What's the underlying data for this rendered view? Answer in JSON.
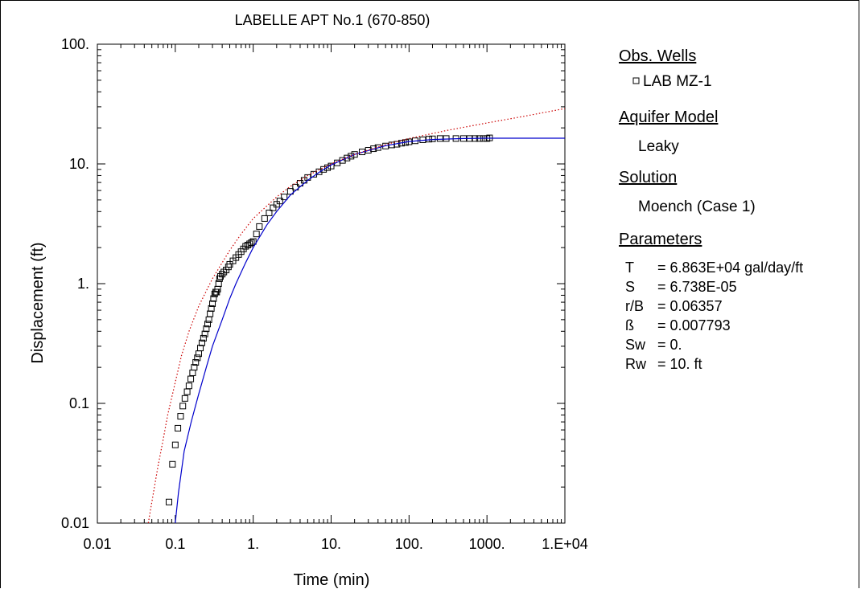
{
  "chart_data": {
    "type": "scatter",
    "title": "LABELLE APT No.1  (670-850)",
    "xlabel": "Time (min)",
    "ylabel": "Displacement (ft)",
    "xscale": "log",
    "yscale": "log",
    "xlim": [
      0.01,
      10000
    ],
    "ylim": [
      0.01,
      100
    ],
    "xticks": [
      {
        "value": 0.01,
        "label": "0.01"
      },
      {
        "value": 0.1,
        "label": "0.1"
      },
      {
        "value": 1,
        "label": "1."
      },
      {
        "value": 10,
        "label": "10."
      },
      {
        "value": 100,
        "label": "100."
      },
      {
        "value": 1000,
        "label": "1000."
      },
      {
        "value": 10000,
        "label": "1.E+04"
      }
    ],
    "yticks": [
      {
        "value": 0.01,
        "label": "0.01"
      },
      {
        "value": 0.1,
        "label": "0.1"
      },
      {
        "value": 1,
        "label": "1."
      },
      {
        "value": 10,
        "label": "10."
      },
      {
        "value": 100,
        "label": "100."
      }
    ],
    "grid": false,
    "series": [
      {
        "name": "LAB MZ-1",
        "kind": "scatter",
        "marker": "open-square",
        "color": "#000000",
        "x": [
          0.083,
          0.092,
          0.1,
          0.108,
          0.117,
          0.125,
          0.133,
          0.142,
          0.15,
          0.158,
          0.167,
          0.175,
          0.183,
          0.192,
          0.2,
          0.21,
          0.22,
          0.23,
          0.24,
          0.25,
          0.26,
          0.27,
          0.28,
          0.29,
          0.3,
          0.31,
          0.32,
          0.33,
          0.34,
          0.35,
          0.36,
          0.37,
          0.38,
          0.4,
          0.42,
          0.45,
          0.48,
          0.5,
          0.55,
          0.6,
          0.65,
          0.7,
          0.75,
          0.8,
          0.85,
          0.9,
          0.95,
          1.0,
          1.1,
          1.2,
          1.4,
          1.6,
          1.8,
          2.0,
          2.2,
          2.5,
          3.0,
          3.5,
          4.0,
          4.5,
          5.0,
          6.0,
          7.0,
          8.0,
          9.0,
          10,
          12,
          14,
          16,
          18,
          20,
          25,
          30,
          35,
          40,
          50,
          60,
          70,
          80,
          90,
          100,
          120,
          150,
          180,
          200,
          250,
          300,
          400,
          500,
          600,
          700,
          800,
          900,
          1000,
          1080
        ],
        "y": [
          0.015,
          0.031,
          0.045,
          0.062,
          0.078,
          0.095,
          0.11,
          0.125,
          0.14,
          0.16,
          0.18,
          0.2,
          0.22,
          0.24,
          0.26,
          0.29,
          0.32,
          0.35,
          0.38,
          0.42,
          0.46,
          0.5,
          0.56,
          0.62,
          0.68,
          0.75,
          0.82,
          0.85,
          0.85,
          0.9,
          1.0,
          1.1,
          1.15,
          1.2,
          1.25,
          1.3,
          1.38,
          1.45,
          1.55,
          1.65,
          1.75,
          1.85,
          1.95,
          2.05,
          2.1,
          2.15,
          2.2,
          2.25,
          2.6,
          3.0,
          3.5,
          3.9,
          4.3,
          4.6,
          4.9,
          5.3,
          5.9,
          6.4,
          6.9,
          7.3,
          7.7,
          8.2,
          8.6,
          9.0,
          9.3,
          9.6,
          10.2,
          10.7,
          11.2,
          11.6,
          12.0,
          12.6,
          13.0,
          13.4,
          13.7,
          14.1,
          14.4,
          14.6,
          14.9,
          15.1,
          15.3,
          15.6,
          15.9,
          16.1,
          16.2,
          16.3,
          16.3,
          16.3,
          16.3,
          16.3,
          16.3,
          16.3,
          16.3,
          16.3,
          16.5
        ]
      },
      {
        "name": "",
        "kind": "line",
        "color": "#0000cc",
        "x": [
          0.1,
          0.11,
          0.13,
          0.16,
          0.2,
          0.25,
          0.3,
          0.4,
          0.5,
          0.6,
          0.8,
          1.0,
          1.5,
          2,
          3,
          5,
          7,
          10,
          20,
          50,
          100,
          200,
          500,
          1000,
          10000
        ],
        "y": [
          0.01,
          0.018,
          0.04,
          0.07,
          0.12,
          0.2,
          0.3,
          0.5,
          0.75,
          1.0,
          1.5,
          2.0,
          3.1,
          4.0,
          5.5,
          7.3,
          8.5,
          9.8,
          12.0,
          14.2,
          15.4,
          16.0,
          16.3,
          16.4,
          16.4
        ]
      },
      {
        "name": "",
        "kind": "line",
        "style": "dotted",
        "color": "#cc0000",
        "x": [
          0.045,
          0.05,
          0.06,
          0.07,
          0.08,
          0.1,
          0.12,
          0.15,
          0.2,
          0.3,
          0.5,
          0.7,
          1.0,
          2,
          3,
          5,
          10,
          20,
          50,
          100,
          300,
          1000,
          3000,
          10000
        ],
        "y": [
          0.01,
          0.015,
          0.03,
          0.05,
          0.08,
          0.15,
          0.25,
          0.4,
          0.65,
          1.1,
          1.9,
          2.6,
          3.5,
          5.3,
          6.5,
          8.0,
          10.0,
          12.0,
          14.5,
          16.3,
          19.0,
          22.0,
          25.0,
          29.0
        ]
      }
    ]
  },
  "legend": {
    "obs_wells_heading": "Obs. Wells",
    "obs_well_name": "LAB MZ-1",
    "aquifer_model_heading": "Aquifer Model",
    "aquifer_model_value": "Leaky",
    "solution_heading": "Solution",
    "solution_value": "Moench (Case 1)",
    "parameters_heading": "Parameters",
    "parameters": [
      {
        "name": "T",
        "value": "= 6.863E+04 gal/day/ft"
      },
      {
        "name": "S",
        "value": "= 6.738E-05"
      },
      {
        "name": "r/B",
        "value": "= 0.06357"
      },
      {
        "name": "ß",
        "value": "= 0.007793"
      },
      {
        "name": "Sw",
        "value": "= 0."
      },
      {
        "name": "Rw",
        "value": "= 10. ft"
      }
    ]
  }
}
